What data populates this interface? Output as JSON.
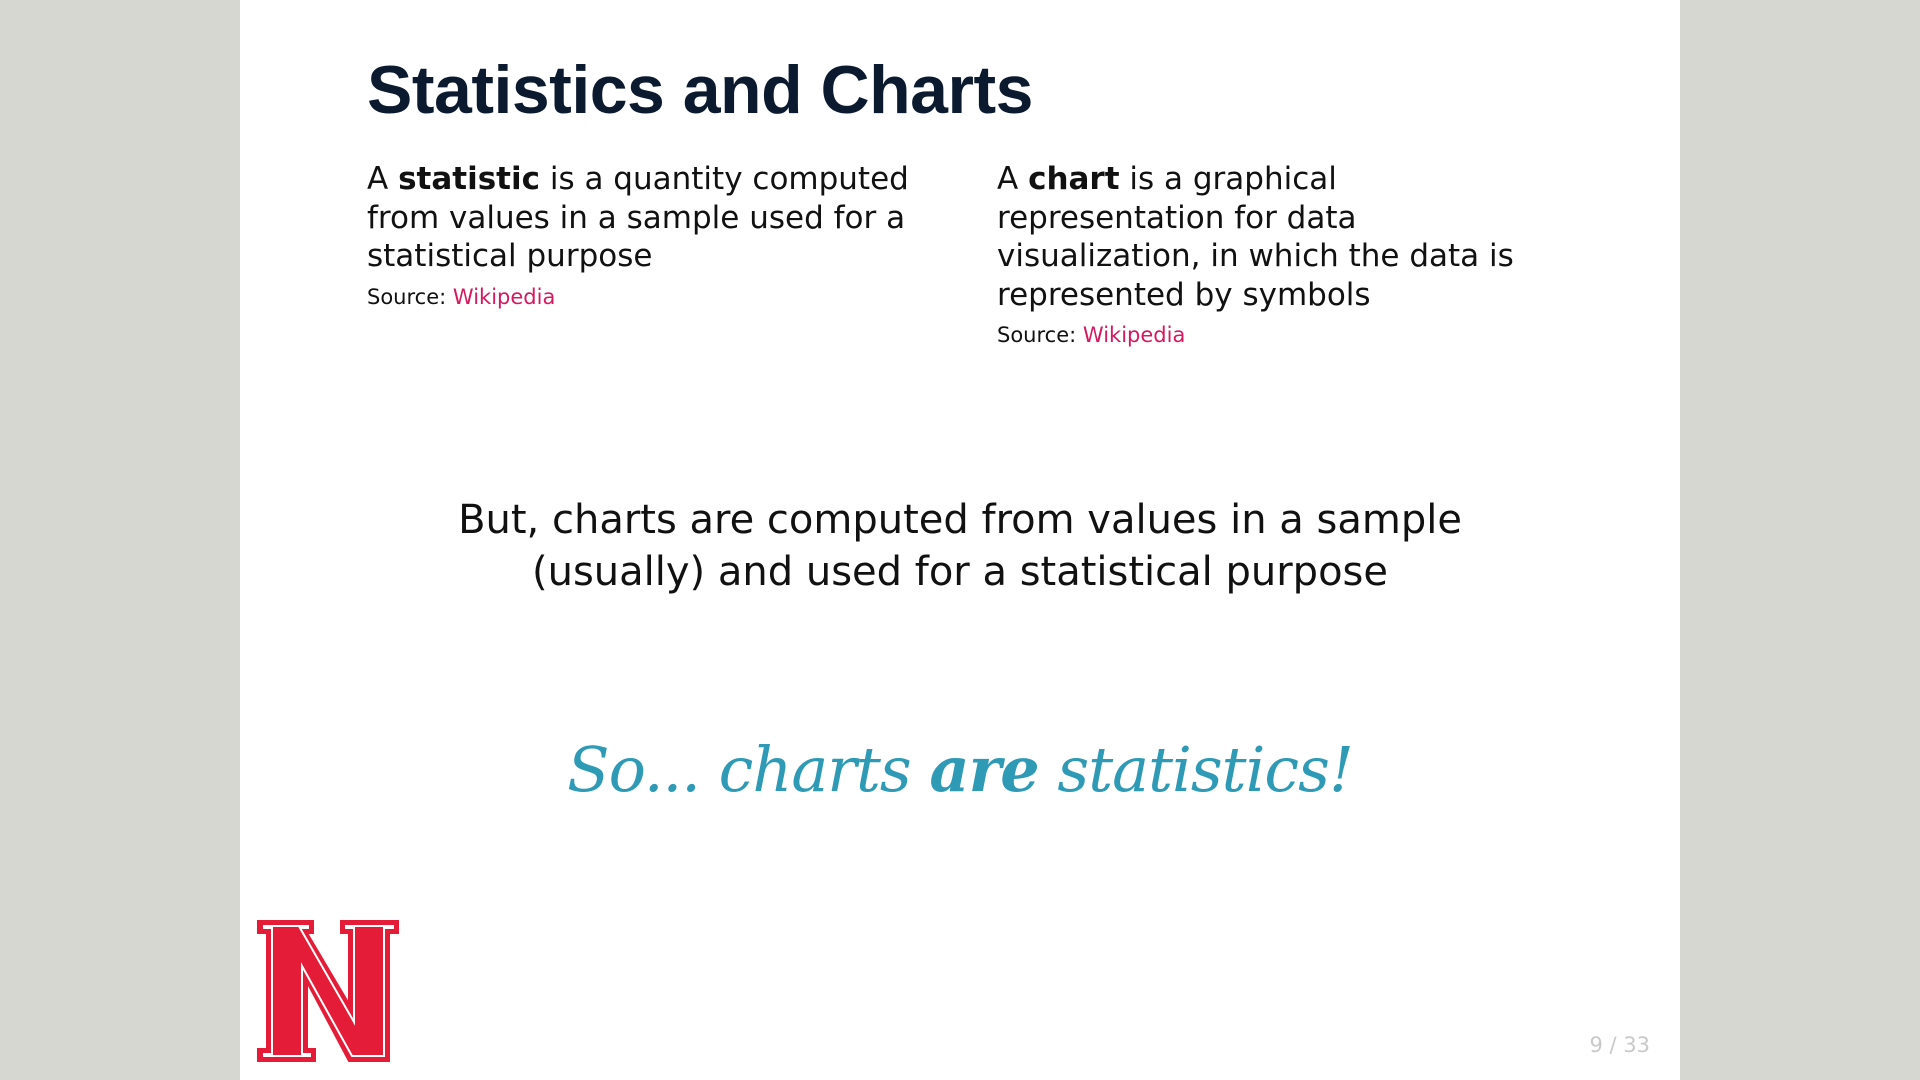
{
  "slide": {
    "title": "Statistics and Charts",
    "left_column": {
      "pre": "A ",
      "term": "statistic",
      "definition": " is a quantity computed from values in a sample used for a statistical purpose",
      "source_label": "Source: ",
      "source_link": "Wikipedia"
    },
    "right_column": {
      "pre": "A ",
      "term": "chart",
      "definition": " is a graphical representation for data visualization, in which the data is represented by symbols",
      "source_label": "Source: ",
      "source_link": "Wikipedia"
    },
    "statement_line1": "But, charts are computed from values in a sample",
    "statement_line2": "(usually) and used for a statistical purpose",
    "conclusion": {
      "pre": "So... charts ",
      "emphasis": "are",
      "post": " statistics!"
    },
    "logo_icon": "nebraska-n-logo",
    "page_number": "9 / 33"
  },
  "colors": {
    "background": "#d7d7d2",
    "slide": "#ffffff",
    "title": "#0b1a2e",
    "link": "#d6195f",
    "conclusion": "#2f9ab5",
    "logo_red": "#e41c38",
    "page_number": "#c9c9c9"
  }
}
